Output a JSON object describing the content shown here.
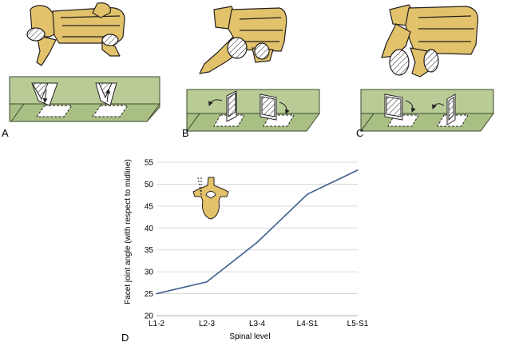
{
  "panels": {
    "a_label": "A",
    "b_label": "B",
    "c_label": "C",
    "d_label": "D"
  },
  "colors": {
    "bone": "#e2c26a",
    "bone_shadow": "#b9973f",
    "plate": "#a9bf84",
    "plate_edge": "#3c4a2e",
    "outline": "#231f20",
    "line": "#3f5f8f",
    "grid": "#cfcfcf"
  },
  "chart_data": {
    "type": "line",
    "categories": [
      "L1-2",
      "L2-3",
      "L3-4",
      "L4-S1",
      "L5-S1"
    ],
    "series": [
      {
        "values": [
          25,
          27.7,
          36.7,
          47.7,
          53.2
        ]
      }
    ],
    "ylim": [
      20,
      55
    ],
    "yticks": [
      20,
      25,
      30,
      35,
      40,
      45,
      50,
      55
    ],
    "xlabel": "Spinal level",
    "ylabel": "Facet joint angle (with respect to midline)",
    "grid": "horizontal"
  }
}
